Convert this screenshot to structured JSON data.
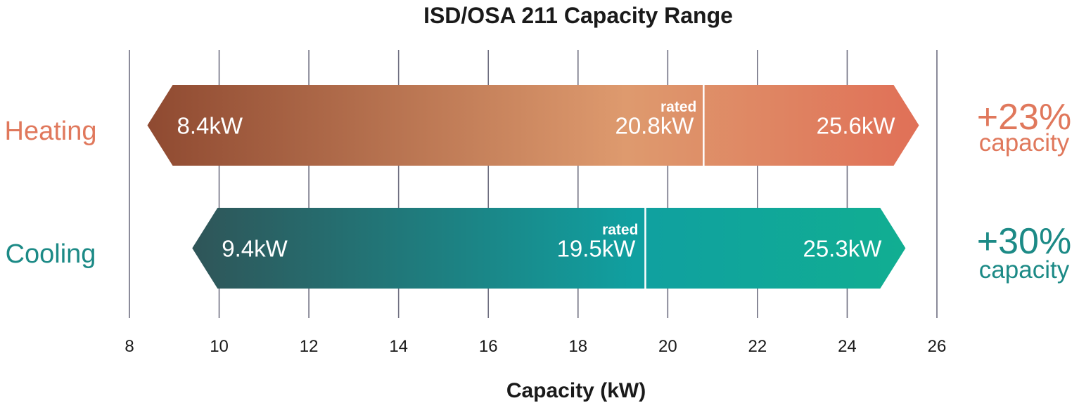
{
  "chart_data": {
    "type": "bar",
    "title": "ISD/OSA 211 Capacity Range",
    "xlabel": "Capacity (kW)",
    "ylabel": "",
    "xlim": [
      8,
      26
    ],
    "xticks": [
      8,
      10,
      12,
      14,
      16,
      18,
      20,
      22,
      24,
      26
    ],
    "grid": true,
    "categories": [
      "Heating",
      "Cooling"
    ],
    "series": [
      {
        "category": "Heating",
        "min": 8.4,
        "rated": 20.8,
        "max": 25.6,
        "min_label": "8.4kW",
        "rated_caption": "rated",
        "rated_label": "20.8kW",
        "max_label": "25.6kW",
        "increase_label": "+23%",
        "increase_caption": "capacity",
        "color_start": "#8f4a31",
        "color_mid": "#de9a6e",
        "color_end": "#e07057",
        "label_color": "#e0785c"
      },
      {
        "category": "Cooling",
        "min": 9.4,
        "rated": 19.5,
        "max": 25.3,
        "min_label": "9.4kW",
        "rated_caption": "rated",
        "rated_label": "19.5kW",
        "max_label": "25.3kW",
        "increase_label": "+30%",
        "increase_caption": "capacity",
        "color_start": "#2f5558",
        "color_mid": "#10a0a0",
        "color_end": "#11ae92",
        "label_color": "#1c8a86"
      }
    ]
  }
}
